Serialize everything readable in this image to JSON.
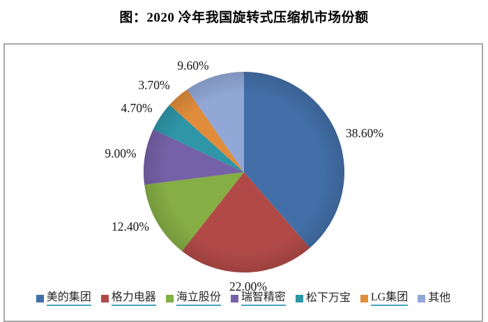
{
  "title": "图：2020 冷年我国旋转式压缩机市场份额",
  "chart_data": {
    "type": "pie",
    "title": "图：2020 冷年我国旋转式压缩机市场份额",
    "unit": "%",
    "start_angle_deg": 0,
    "direction": "clockwise",
    "legend_position": "bottom",
    "series": [
      {
        "name": "美的集团",
        "value": 38.6,
        "label": "38.60%",
        "color": "#426fa8",
        "underlined": true
      },
      {
        "name": "格力电器",
        "value": 22.0,
        "label": "22.00%",
        "color": "#b14a47",
        "underlined": true
      },
      {
        "name": "海立股份",
        "value": 12.4,
        "label": "12.40%",
        "color": "#85ae45",
        "underlined": true
      },
      {
        "name": "瑞智精密",
        "value": 9.0,
        "label": "9.00%",
        "color": "#7561a7",
        "underlined": true
      },
      {
        "name": "松下万宝",
        "value": 4.7,
        "label": "4.70%",
        "color": "#2e96a7",
        "underlined": false
      },
      {
        "name": "LG集团",
        "value": 3.7,
        "label": "3.70%",
        "color": "#e08c3b",
        "underlined": true
      },
      {
        "name": "其他",
        "value": 9.6,
        "label": "9.60%",
        "color": "#91a8d6",
        "underlined": false
      }
    ]
  },
  "frame": {
    "border_color": "#a8a8a8"
  },
  "legend": {
    "underline_color": "#45a5be"
  }
}
